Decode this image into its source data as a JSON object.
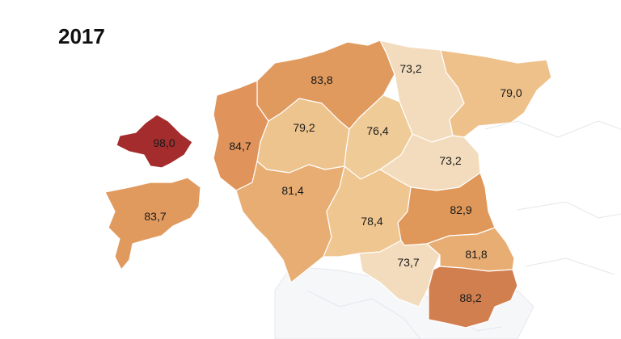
{
  "title": "2017",
  "colors": {
    "lightest": "#f2dcbf",
    "light": "#eec48e",
    "medium": "#e3a468",
    "medium_dark": "#d98b4e",
    "dark": "#c96f42",
    "darkest": "#a83232"
  },
  "regions": [
    {
      "id": "harju",
      "value": "83,8",
      "color": "#e19a5e"
    },
    {
      "id": "laane-viru",
      "value": "73,2",
      "color": "#f3dcbd"
    },
    {
      "id": "ida-viru",
      "value": "79,0",
      "color": "#eec18a"
    },
    {
      "id": "hiiu",
      "value": "98,0",
      "color": "#a52c2c"
    },
    {
      "id": "laane",
      "value": "84,7",
      "color": "#e0935a"
    },
    {
      "id": "rapla",
      "value": "79,2",
      "color": "#eec48e"
    },
    {
      "id": "jarva",
      "value": "76,4",
      "color": "#efcb98"
    },
    {
      "id": "jogeva",
      "value": "73,2",
      "color": "#f3dcbd"
    },
    {
      "id": "saare",
      "value": "83,7",
      "color": "#e19a5e"
    },
    {
      "id": "parnu",
      "value": "81,4",
      "color": "#e8ad72"
    },
    {
      "id": "viljandi",
      "value": "78,4",
      "color": "#efc590"
    },
    {
      "id": "tartu",
      "value": "82,9",
      "color": "#df9859"
    },
    {
      "id": "valga",
      "value": "73,7",
      "color": "#f3dcbd"
    },
    {
      "id": "polva",
      "value": "81,8",
      "color": "#e8ad72"
    },
    {
      "id": "voru",
      "value": "88,2",
      "color": "#d27f4f"
    }
  ]
}
